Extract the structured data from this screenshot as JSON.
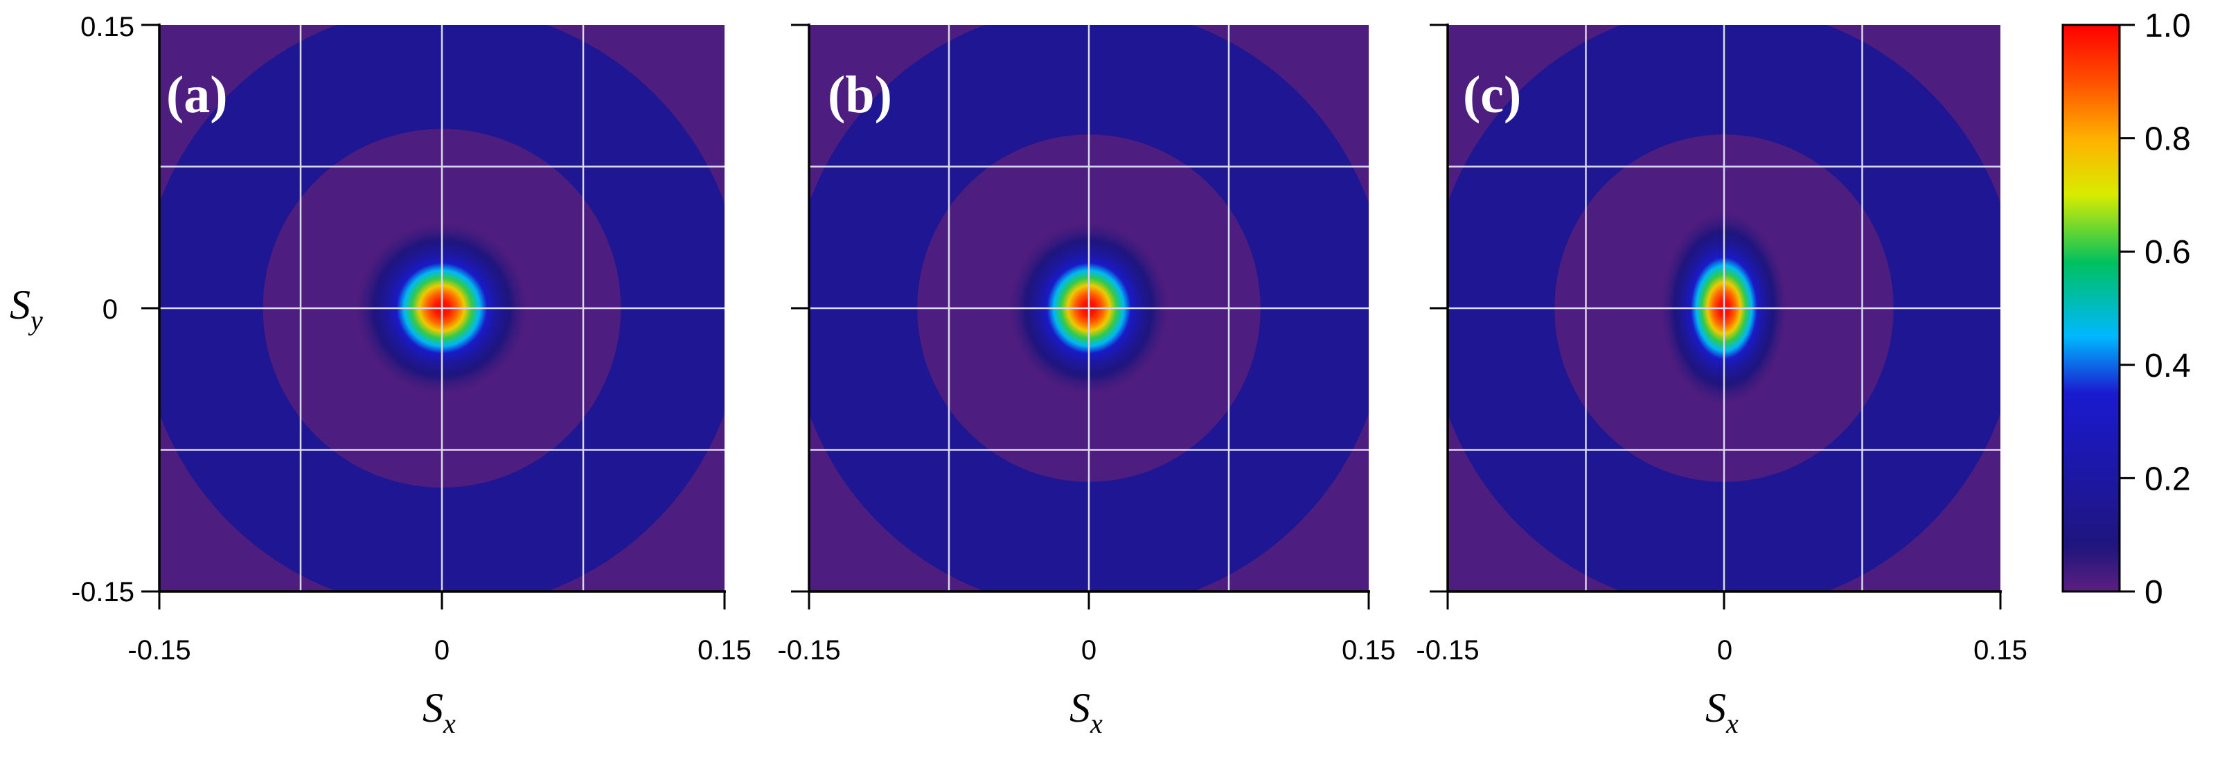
{
  "chart_data": [
    {
      "type": "heatmap",
      "panel_label": "(a)",
      "xlabel": "S",
      "xlabel_sub": "x",
      "ylabel": "S",
      "ylabel_sub": "y",
      "xlim": [
        -0.15,
        0.15
      ],
      "ylim": [
        -0.15,
        0.15
      ],
      "x_ticks": [
        "-0.15",
        "0",
        "0.15"
      ],
      "y_ticks": [
        "0.15",
        "0",
        "-0.15"
      ],
      "grid_lines": [
        -0.075,
        0,
        0.075
      ],
      "grid": true,
      "peak": {
        "x": 0,
        "y": 0,
        "value": 1.0,
        "sigma_x": 0.016,
        "sigma_y": 0.016
      },
      "rings": [
        {
          "inner_radius": 0,
          "outer_radius": 0.095,
          "value": 0.02
        },
        {
          "inner_radius": 0.095,
          "outer_radius": 0.16,
          "value": 0.15
        },
        {
          "inner_radius": 0.16,
          "outer_radius": 0.25,
          "value": 0.02
        }
      ]
    },
    {
      "type": "heatmap",
      "panel_label": "(b)",
      "xlabel": "S",
      "xlabel_sub": "x",
      "ylabel": "",
      "xlim": [
        -0.15,
        0.15
      ],
      "ylim": [
        -0.15,
        0.15
      ],
      "x_ticks": [
        "-0.15",
        "0",
        "0.15"
      ],
      "y_ticks": [],
      "grid_lines": [
        -0.075,
        0,
        0.075
      ],
      "grid": true,
      "peak": {
        "x": 0,
        "y": 0,
        "value": 1.0,
        "sigma_x": 0.015,
        "sigma_y": 0.016
      },
      "rings": [
        {
          "inner_radius": 0,
          "outer_radius": 0.092,
          "value": 0.02
        },
        {
          "inner_radius": 0.092,
          "outer_radius": 0.16,
          "value": 0.15
        },
        {
          "inner_radius": 0.16,
          "outer_radius": 0.25,
          "value": 0.02
        }
      ]
    },
    {
      "type": "heatmap",
      "panel_label": "(c)",
      "xlabel": "S",
      "xlabel_sub": "x",
      "ylabel": "",
      "xlim": [
        -0.15,
        0.15
      ],
      "ylim": [
        -0.15,
        0.15
      ],
      "x_ticks": [
        "-0.15",
        "0",
        "0.15"
      ],
      "y_ticks": [],
      "grid_lines": [
        -0.075,
        0,
        0.075
      ],
      "grid": true,
      "peak": {
        "x": 0,
        "y": 0,
        "value": 1.0,
        "sigma_x": 0.012,
        "sigma_y": 0.018
      },
      "rings": [
        {
          "inner_radius": 0,
          "outer_radius": 0.092,
          "value": 0.02
        },
        {
          "inner_radius": 0.092,
          "outer_radius": 0.16,
          "value": 0.15
        },
        {
          "inner_radius": 0.16,
          "outer_radius": 0.25,
          "value": 0.02
        }
      ]
    }
  ],
  "colorbar": {
    "range": [
      0,
      1.0
    ],
    "ticks": [
      "1.0",
      "0.8",
      "0.6",
      "0.4",
      "0.2",
      "0"
    ],
    "tick_values": [
      1.0,
      0.8,
      0.6,
      0.4,
      0.2,
      0
    ],
    "colors": [
      "#5c1f80",
      "#1f157d",
      "#1a1ad0",
      "#00b8ff",
      "#00c060",
      "#d8ec00",
      "#ffb000",
      "#ff5000",
      "#ff0000"
    ],
    "stops": [
      0,
      0.08,
      0.35,
      0.45,
      0.58,
      0.7,
      0.8,
      0.9,
      1.0
    ]
  }
}
